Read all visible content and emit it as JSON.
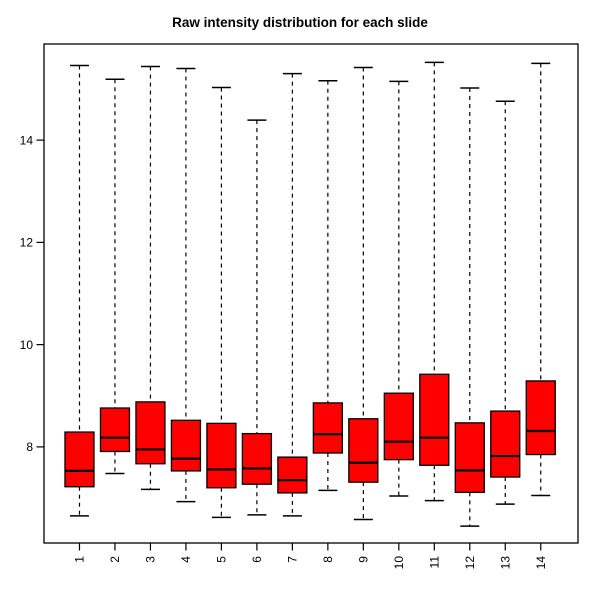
{
  "chart_data": {
    "type": "boxplot",
    "title": "Raw intensity distribution for each slide",
    "xlabel": "",
    "ylabel": "",
    "ylim": [
      6.12,
      15.88
    ],
    "xlim": [
      0,
      15.05
    ],
    "yticks": [
      8,
      10,
      12,
      14
    ],
    "grid": false,
    "legend": "none",
    "colors": {
      "box_fill": "#FF0000",
      "stroke": "#000000",
      "background": "#FFFFFF"
    },
    "categories": [
      "1",
      "2",
      "3",
      "4",
      "5",
      "6",
      "7",
      "8",
      "9",
      "10",
      "11",
      "12",
      "13",
      "14"
    ],
    "series": [
      {
        "slide": "1",
        "whisker_low": 6.65,
        "q1": 7.22,
        "median": 7.53,
        "q3": 8.29,
        "whisker_high": 15.46
      },
      {
        "slide": "2",
        "whisker_low": 7.48,
        "q1": 7.91,
        "median": 8.18,
        "q3": 8.76,
        "whisker_high": 15.19
      },
      {
        "slide": "3",
        "whisker_low": 7.17,
        "q1": 7.67,
        "median": 7.95,
        "q3": 8.88,
        "whisker_high": 15.44
      },
      {
        "slide": "4",
        "whisker_low": 6.93,
        "q1": 7.53,
        "median": 7.77,
        "q3": 8.52,
        "whisker_high": 15.4
      },
      {
        "slide": "5",
        "whisker_low": 6.62,
        "q1": 7.2,
        "median": 7.56,
        "q3": 8.46,
        "whisker_high": 15.03
      },
      {
        "slide": "6",
        "whisker_low": 6.67,
        "q1": 7.27,
        "median": 7.58,
        "q3": 8.26,
        "whisker_high": 14.39
      },
      {
        "slide": "7",
        "whisker_low": 6.65,
        "q1": 7.1,
        "median": 7.35,
        "q3": 7.8,
        "whisker_high": 15.3
      },
      {
        "slide": "8",
        "whisker_low": 7.15,
        "q1": 7.88,
        "median": 8.25,
        "q3": 8.86,
        "whisker_high": 15.16
      },
      {
        "slide": "9",
        "whisker_low": 6.58,
        "q1": 7.31,
        "median": 7.69,
        "q3": 8.55,
        "whisker_high": 15.42
      },
      {
        "slide": "10",
        "whisker_low": 7.04,
        "q1": 7.75,
        "median": 8.1,
        "q3": 9.05,
        "whisker_high": 15.15
      },
      {
        "slide": "11",
        "whisker_low": 6.95,
        "q1": 7.64,
        "median": 8.18,
        "q3": 9.42,
        "whisker_high": 15.52
      },
      {
        "slide": "12",
        "whisker_low": 6.45,
        "q1": 7.11,
        "median": 7.54,
        "q3": 8.47,
        "whisker_high": 15.02
      },
      {
        "slide": "13",
        "whisker_low": 6.88,
        "q1": 7.41,
        "median": 7.82,
        "q3": 8.7,
        "whisker_high": 14.76
      },
      {
        "slide": "14",
        "whisker_low": 7.05,
        "q1": 7.85,
        "median": 8.31,
        "q3": 9.29,
        "whisker_high": 15.5
      }
    ]
  }
}
